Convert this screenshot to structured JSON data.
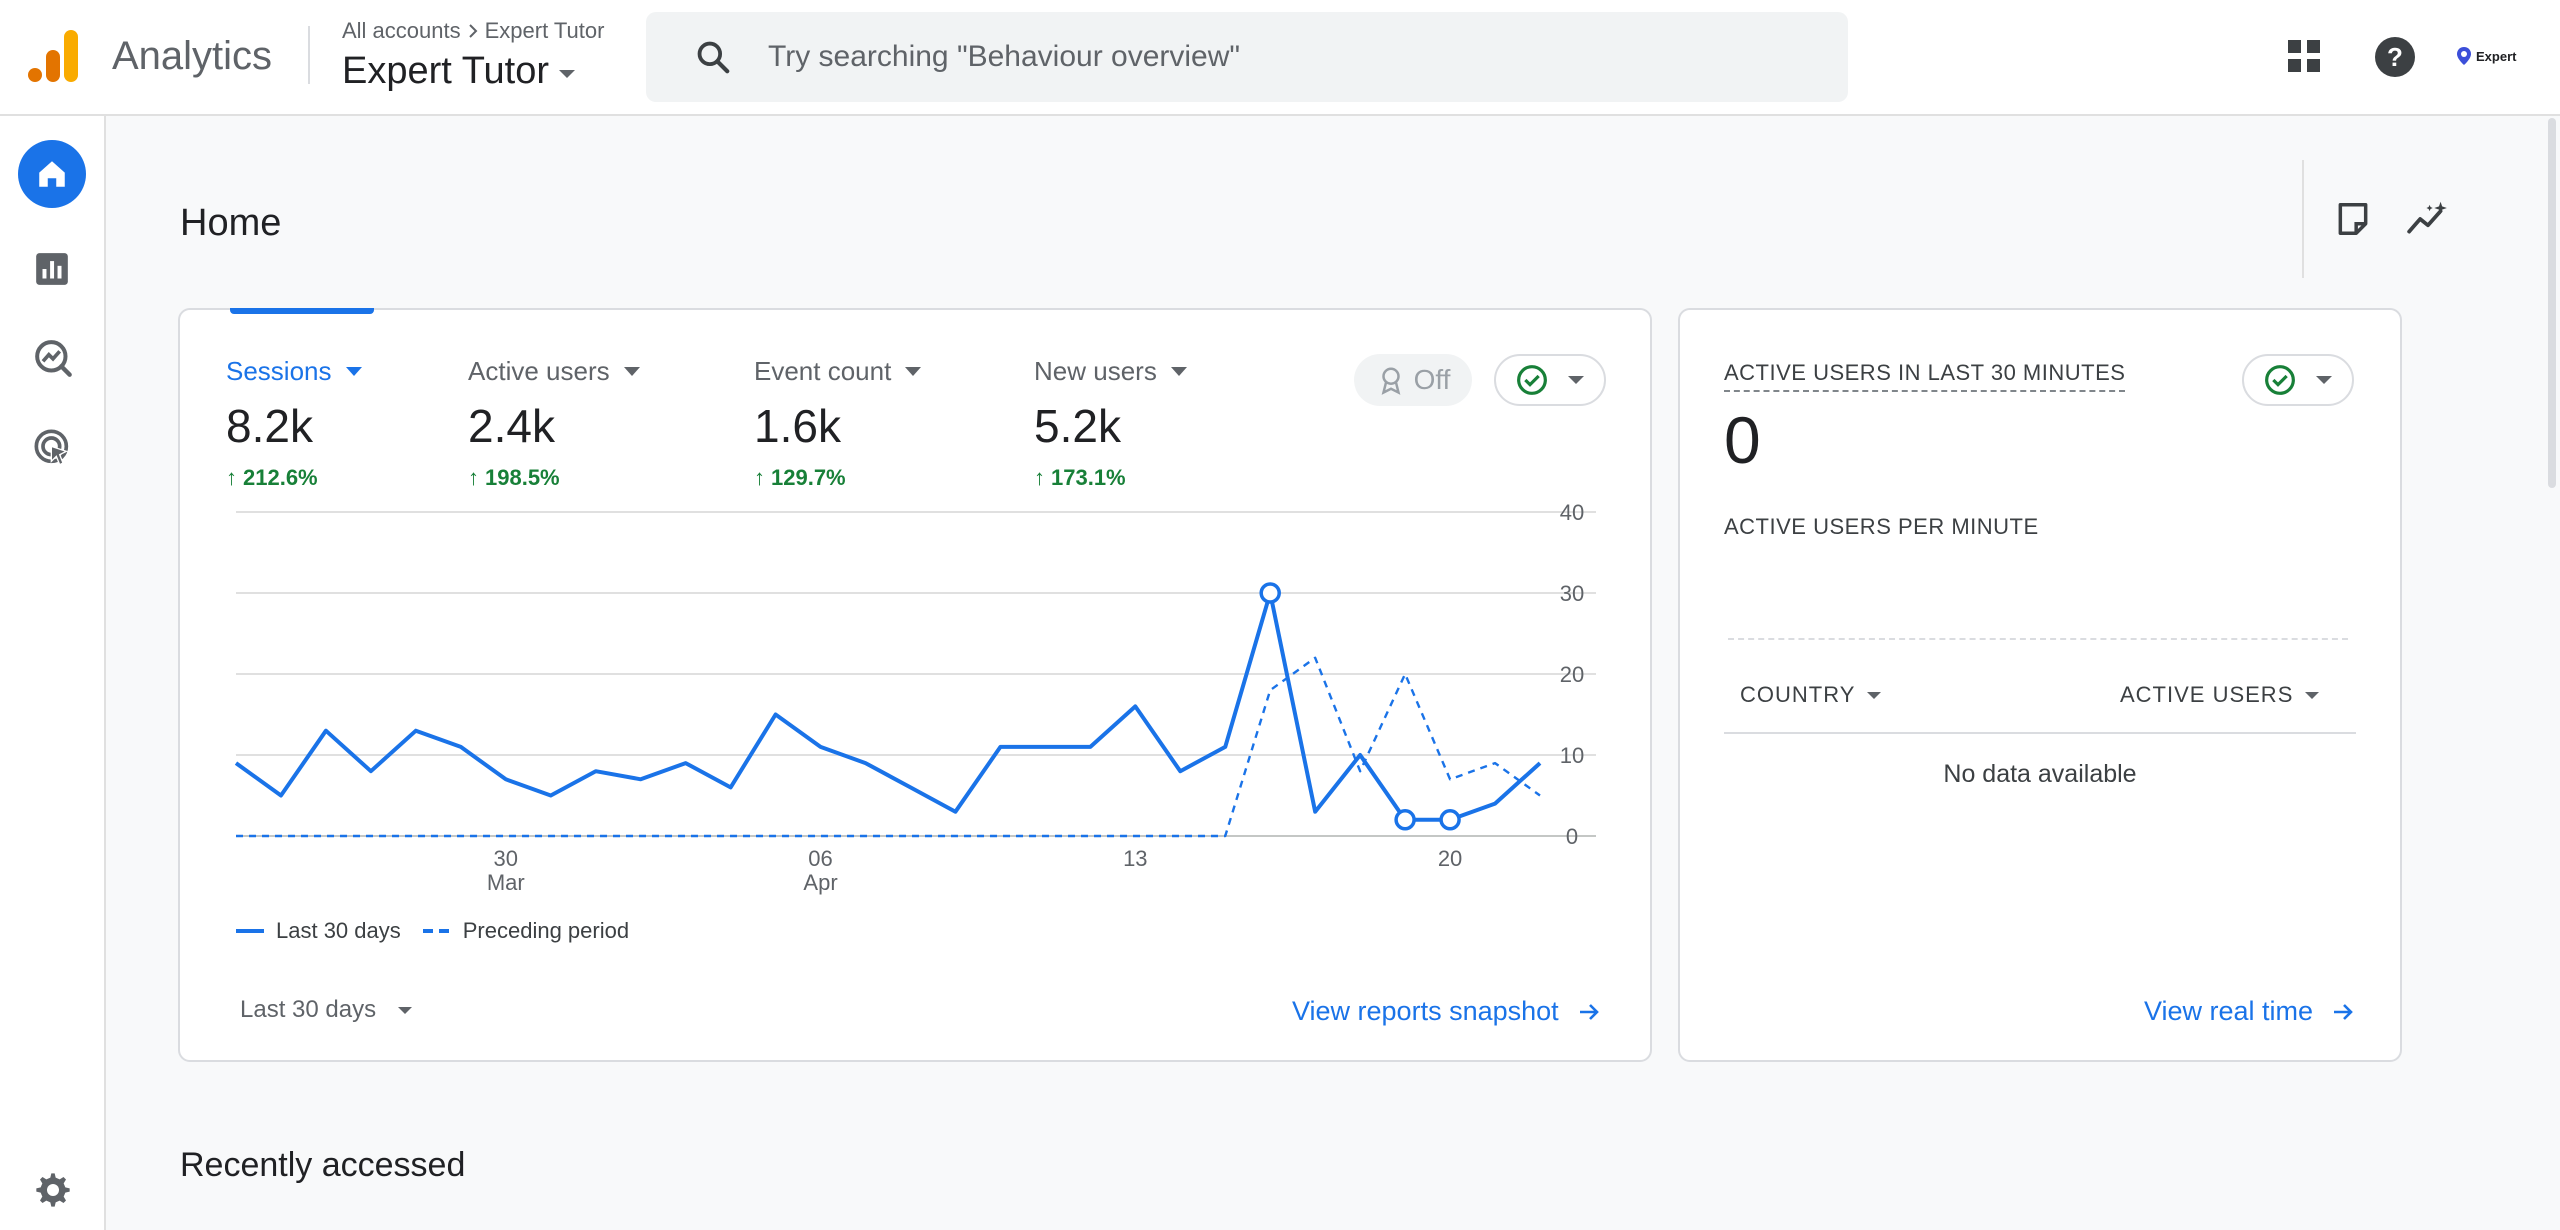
{
  "app": {
    "title": "Analytics"
  },
  "header": {
    "breadcrumb_root": "All accounts",
    "breadcrumb_current": "Expert Tutor",
    "account_name": "Expert Tutor",
    "search_placeholder": "Try searching \"Behaviour overview\"",
    "avatar_label": "Expert"
  },
  "icons": {
    "search": "search-icon",
    "apps": "apps-grid-icon",
    "help": "help-icon",
    "home": "home-icon",
    "reports": "bar-chart-icon",
    "explore": "explore-icon",
    "advertising": "advertising-icon",
    "settings": "gear-icon",
    "note": "note-icon",
    "insights": "insights-icon"
  },
  "colors": {
    "accent": "#1a73e8",
    "positive": "#188038",
    "logo_orange": "#f9ab00",
    "logo_dark": "#e37400"
  },
  "page": {
    "title": "Home",
    "recently_accessed": "Recently accessed"
  },
  "metrics": [
    {
      "label": "Sessions",
      "value": "8.2k",
      "change": "212.6%",
      "active": true
    },
    {
      "label": "Active users",
      "value": "2.4k",
      "change": "198.5%",
      "active": false
    },
    {
      "label": "Event count",
      "value": "1.6k",
      "change": "129.7%",
      "active": false
    },
    {
      "label": "New users",
      "value": "5.2k",
      "change": "173.1%",
      "active": false
    }
  ],
  "controls": {
    "off_label": "Off",
    "date_range": "Last 30 days",
    "view_snapshot": "View reports snapshot",
    "view_realtime": "View real time"
  },
  "chart_data": {
    "type": "line",
    "x": [
      "Mar 24",
      "Mar 25",
      "Mar 26",
      "Mar 27",
      "Mar 28",
      "Mar 29",
      "Mar 30",
      "Mar 31",
      "Apr 01",
      "Apr 02",
      "Apr 03",
      "Apr 04",
      "Apr 05",
      "Apr 06",
      "Apr 07",
      "Apr 08",
      "Apr 09",
      "Apr 10",
      "Apr 11",
      "Apr 12",
      "Apr 13",
      "Apr 14",
      "Apr 15",
      "Apr 16",
      "Apr 17",
      "Apr 18",
      "Apr 19",
      "Apr 20",
      "Apr 21",
      "Apr 22"
    ],
    "series": [
      {
        "name": "Last 30 days",
        "style": "solid",
        "values": [
          9,
          5,
          13,
          8,
          13,
          11,
          7,
          5,
          8,
          7,
          9,
          6,
          15,
          11,
          9,
          6,
          3,
          11,
          11,
          11,
          16,
          8,
          11,
          30,
          3,
          10,
          2,
          2,
          4,
          9
        ],
        "markers": [
          23,
          26,
          27
        ]
      },
      {
        "name": "Preceding period",
        "style": "dashed",
        "values": [
          0,
          0,
          0,
          0,
          0,
          0,
          0,
          0,
          0,
          0,
          0,
          0,
          0,
          0,
          0,
          0,
          0,
          0,
          0,
          0,
          0,
          0,
          0,
          18,
          22,
          8,
          20,
          7,
          9,
          5
        ]
      }
    ],
    "xticks": [
      {
        "index": 6,
        "label": "30",
        "sub": "Mar"
      },
      {
        "index": 13,
        "label": "06",
        "sub": "Apr"
      },
      {
        "index": 20,
        "label": "13",
        "sub": ""
      },
      {
        "index": 27,
        "label": "20",
        "sub": ""
      }
    ],
    "yticks": [
      0,
      10,
      20,
      30,
      40
    ],
    "ylim": [
      0,
      40
    ],
    "grid": true,
    "legend": "bottom-left"
  },
  "realtime": {
    "heading": "ACTIVE USERS IN LAST 30 MINUTES",
    "value": "0",
    "per_minute": "ACTIVE USERS PER MINUTE",
    "col_country": "COUNTRY",
    "col_users": "ACTIVE USERS",
    "empty": "No data available"
  }
}
